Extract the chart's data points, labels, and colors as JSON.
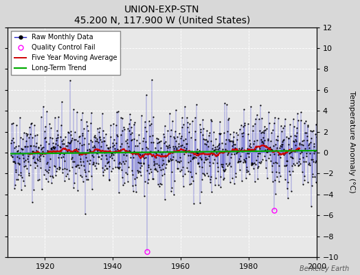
{
  "title": "UNION-EXP-STN",
  "subtitle": "45.200 N, 117.900 W (United States)",
  "ylabel": "Temperature Anomaly (°C)",
  "watermark": "Berkeley Earth",
  "year_start": 1910,
  "year_end": 2000,
  "ylim": [
    -10,
    12
  ],
  "yticks": [
    -10,
    -8,
    -6,
    -4,
    -2,
    0,
    2,
    4,
    6,
    8,
    10,
    12
  ],
  "bg_color": "#d8d8d8",
  "plot_bg_color": "#e8e8e8",
  "line_color": "#2222cc",
  "dot_color": "#000000",
  "ma_color": "#cc0000",
  "trend_color": "#00aa00",
  "qc_color": "#ff00ff",
  "seed": 42,
  "n_months": 1080,
  "noise_std": 1.8,
  "ma_window": 60,
  "figwidth": 5.24,
  "figheight": 4.0,
  "dpi": 100,
  "qc_1950_val": -9.5,
  "qc_1988_val": -5.5,
  "spike_1951_val": 7.0,
  "title_fontsize": 10,
  "subtitle_fontsize": 9,
  "tick_fontsize": 8,
  "ylabel_fontsize": 8,
  "legend_fontsize": 7,
  "watermark_fontsize": 7
}
